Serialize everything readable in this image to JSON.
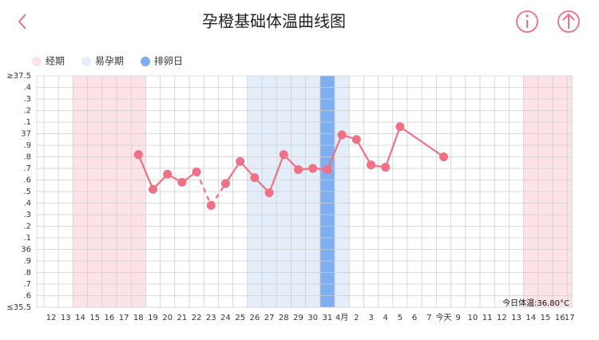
{
  "header": {
    "title": "孕橙基础体温曲线图"
  },
  "chart_data": {
    "type": "line",
    "legend": [
      {
        "name": "经期",
        "color": "#fde3e8"
      },
      {
        "name": "易孕期",
        "color": "#e4eefb"
      },
      {
        "name": "排卵日",
        "color": "#7eaff3"
      }
    ],
    "bands": [
      {
        "legend": 0,
        "from": 2,
        "to": 6
      },
      {
        "legend": 1,
        "from": 14,
        "to": 20
      },
      {
        "legend": 2,
        "from": 19,
        "to": 19
      },
      {
        "legend": 0,
        "from": 33,
        "to": 36
      }
    ],
    "categories": [
      "12",
      "13",
      "14",
      "15",
      "16",
      "17",
      "18",
      "19",
      "20",
      "21",
      "22",
      "23",
      "24",
      "25",
      "26",
      "27",
      "28",
      "29",
      "30",
      "31",
      "4月",
      "2",
      "3",
      "4",
      "5",
      "6",
      "7",
      "今天",
      "9",
      "10",
      "11",
      "12",
      "13",
      "14",
      "15",
      "16",
      "17"
    ],
    "series": [
      {
        "color": "#f07186",
        "values": [
          null,
          null,
          null,
          null,
          null,
          null,
          36.82,
          36.52,
          36.65,
          36.58,
          36.67,
          36.38,
          36.57,
          36.76,
          36.62,
          36.49,
          36.82,
          36.69,
          36.7,
          36.69,
          36.99,
          36.95,
          36.73,
          36.71,
          37.06,
          null,
          null,
          36.8,
          null,
          null,
          null,
          null,
          null,
          null,
          null,
          null,
          null
        ]
      }
    ],
    "dashed_from": [
      10,
      11
    ],
    "ylim": [
      35.5,
      37.5
    ],
    "yticks": [
      {
        "value": 37.5,
        "label": "≥37.5"
      },
      {
        "value": 37.4,
        "label": ".4"
      },
      {
        "value": 37.3,
        "label": ".3"
      },
      {
        "value": 37.2,
        "label": ".2"
      },
      {
        "value": 37.1,
        "label": ".1"
      },
      37,
      {
        "value": 36.9,
        "label": ".9"
      },
      {
        "value": 36.8,
        "label": ".8"
      },
      {
        "value": 36.7,
        "label": ".7"
      },
      {
        "value": 36.6,
        "label": ".6"
      },
      {
        "value": 36.5,
        "label": ".5"
      },
      {
        "value": 36.4,
        "label": ".4"
      },
      {
        "value": 36.3,
        "label": ".3"
      },
      {
        "value": 36.2,
        "label": ".2"
      },
      {
        "value": 36.1,
        "label": ".1"
      },
      36,
      {
        "value": 35.9,
        "label": ".9"
      },
      {
        "value": 35.8,
        "label": ".8"
      },
      {
        "value": 35.7,
        "label": ".7"
      },
      {
        "value": 35.6,
        "label": ".6"
      },
      {
        "value": 35.5,
        "label": "≤35.5"
      }
    ],
    "grid": true,
    "annotation": "今日体温:36.80°C"
  }
}
